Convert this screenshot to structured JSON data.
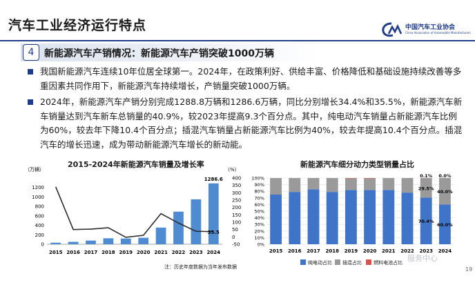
{
  "header": {
    "title": "汽车工业经济运行特点",
    "logo_cn": "中国汽车工业协会",
    "logo_en": "China Association of Automobile Manufacturers"
  },
  "section": {
    "number": "4",
    "title": "新能源汽车产销情况：新能源汽车产销突破1000万辆"
  },
  "bullets": [
    "我国新能源汽车连续10年位居全球第一。2024年，在政策利好、供给丰富、价格降低和基础设施持续改善等多重因素共同作用下，新能源汽车持续增长，产销量突破1000万辆。",
    "2024年，新能源汽车产销分别完成1288.8万辆和1286.6万辆，同比分别增长34.4%和35.5%，新能源汽车新车销量达到汽车新车总销量的40.9%，较2023年提高9.3个百分点。其中，纯电动汽车销量占新能源汽车比例为60%，较去年下降10.4个百分点；插混汽车销量占新能源汽车比例为40%，较去年提高10.4个百分点。插混汽车的增长迅速，成为带动新能源汽车增长的新动能。"
  ],
  "note": "注：历史年度数据为当年发布数据",
  "watermark": "服务中心",
  "page_number": "19",
  "colors": {
    "primary": "#1f3c8a",
    "bar": "#4f8bd1",
    "line": "#2b2b2b",
    "bev": "#3f74c8",
    "phev": "#9a9a9a",
    "fcev": "#d9534f"
  },
  "chart_data": [
    {
      "type": "bar",
      "title": "2015-2024年新能源汽车销量及增长率",
      "categories": [
        "2015",
        "2016",
        "2017",
        "2018",
        "2019",
        "2020",
        "2021",
        "2022",
        "2023",
        "2024"
      ],
      "series": [
        {
          "name": "销量",
          "unit": "万辆",
          "values": [
            33,
            51,
            78,
            126,
            121,
            137,
            352,
            689,
            950,
            1286.6
          ]
        },
        {
          "name": "增长率",
          "unit": "%",
          "values": [
            340,
            50,
            53,
            62,
            -3,
            11,
            158,
            94,
            38,
            35.5
          ]
        }
      ],
      "y_left": {
        "unit_label": "（万辆）",
        "range": [
          0,
          1400
        ],
        "ticks": [
          0,
          200,
          400,
          600,
          800,
          1000,
          1200
        ]
      },
      "y_right": {
        "unit_label": "（%）",
        "range": [
          -50,
          400
        ],
        "ticks": [
          -50,
          0,
          50,
          100,
          150,
          200,
          250,
          300,
          350,
          400
        ]
      },
      "data_labels": {
        "bar_2024": "1286.6",
        "rate_2024": "35.5"
      },
      "grid": false
    },
    {
      "type": "bar",
      "stacked": true,
      "title": "新能源汽车细分动力类型销量占比",
      "categories": [
        "2015",
        "2016",
        "2017",
        "2018",
        "2019",
        "2020",
        "2021",
        "2022",
        "2023",
        "2024"
      ],
      "series": [
        {
          "name": "纯电动占比",
          "values": [
            75,
            79,
            83,
            79,
            82,
            82,
            82,
            78,
            70.4,
            60.0
          ]
        },
        {
          "name": "插混占比",
          "values": [
            25,
            21,
            17,
            21,
            17.5,
            17.5,
            18,
            22,
            29.5,
            40.0
          ]
        },
        {
          "name": "燃料电池占比",
          "values": [
            0,
            0,
            0,
            0,
            0.5,
            0.5,
            0,
            0,
            0.1,
            0.0
          ]
        }
      ],
      "y_ticks": [
        "0%",
        "10%",
        "20%",
        "30%",
        "40%",
        "50%",
        "60%",
        "70%",
        "80%",
        "90%",
        "100%"
      ],
      "data_labels_2023": [
        "70.4%",
        "29.5%",
        "0.1%"
      ],
      "data_labels_2024": [
        "60.0%",
        "40.0%",
        "0.0%"
      ],
      "legend_position": "bottom",
      "grid": true
    }
  ]
}
